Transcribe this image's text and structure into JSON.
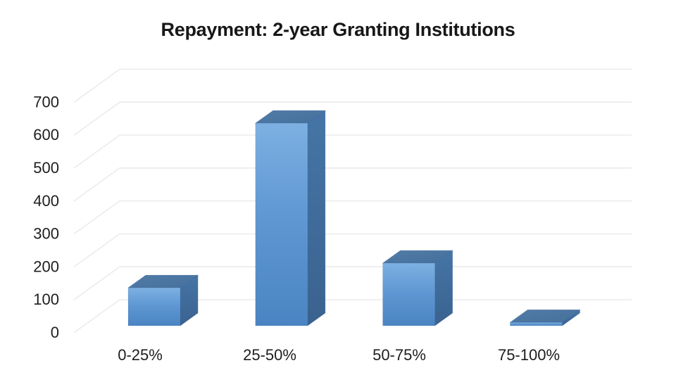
{
  "title": "Repayment: 2-year Granting Institutions",
  "chart_data": {
    "type": "bar",
    "variant": "3d-column",
    "title": "Repayment: 2-year Granting Institutions",
    "categories": [
      "0-25%",
      "25-50%",
      "50-75%",
      "75-100%"
    ],
    "values": [
      115,
      615,
      190,
      10
    ],
    "yticks": [
      0,
      100,
      200,
      300,
      400,
      500,
      600,
      700
    ],
    "ylim": [
      0,
      700
    ],
    "xlabel": "",
    "ylabel": "",
    "grid": true,
    "legend": false
  },
  "colors": {
    "background": "#ffffff",
    "title_text": "#171717",
    "axis_text": "#1e1e1e",
    "gridline": "#ebebeb",
    "bar_front_light": "#7db0e2",
    "bar_front_mid": "#5f98d3",
    "bar_front_dark": "#4a84c2",
    "bar_top_light": "#527ca8",
    "bar_top_dark": "#46709c",
    "bar_side_light": "#4575a6",
    "bar_side_dark": "#3a628f",
    "bar_edge": "#3c689a"
  }
}
